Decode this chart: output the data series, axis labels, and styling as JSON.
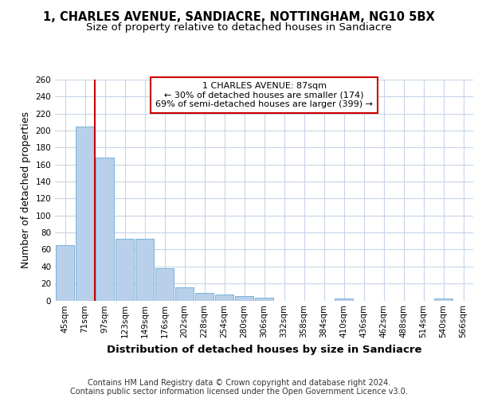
{
  "title": "1, CHARLES AVENUE, SANDIACRE, NOTTINGHAM, NG10 5BX",
  "subtitle": "Size of property relative to detached houses in Sandiacre",
  "xlabel": "Distribution of detached houses by size in Sandiacre",
  "ylabel": "Number of detached properties",
  "footer_line1": "Contains HM Land Registry data © Crown copyright and database right 2024.",
  "footer_line2": "Contains public sector information licensed under the Open Government Licence v3.0.",
  "categories": [
    "45sqm",
    "71sqm",
    "97sqm",
    "123sqm",
    "149sqm",
    "176sqm",
    "202sqm",
    "228sqm",
    "254sqm",
    "280sqm",
    "306sqm",
    "332sqm",
    "358sqm",
    "384sqm",
    "410sqm",
    "436sqm",
    "462sqm",
    "488sqm",
    "514sqm",
    "540sqm",
    "566sqm"
  ],
  "values": [
    65,
    205,
    168,
    73,
    73,
    38,
    15,
    9,
    7,
    5,
    3,
    0,
    0,
    0,
    2,
    0,
    0,
    0,
    0,
    2,
    0
  ],
  "bar_color": "#b8d0ea",
  "bar_edge_color": "#6aaad4",
  "vline_color": "#cc0000",
  "annotation_text": "1 CHARLES AVENUE: 87sqm\n← 30% of detached houses are smaller (174)\n69% of semi-detached houses are larger (399) →",
  "annotation_box_color": "#ffffff",
  "annotation_box_edge": "#cc0000",
  "ylim": [
    0,
    260
  ],
  "yticks": [
    0,
    20,
    40,
    60,
    80,
    100,
    120,
    140,
    160,
    180,
    200,
    220,
    240,
    260
  ],
  "bg_color": "#ffffff",
  "grid_color": "#c8d4e8",
  "title_fontsize": 10.5,
  "subtitle_fontsize": 9.5,
  "axis_label_fontsize": 9,
  "tick_fontsize": 7.5,
  "footer_fontsize": 7
}
